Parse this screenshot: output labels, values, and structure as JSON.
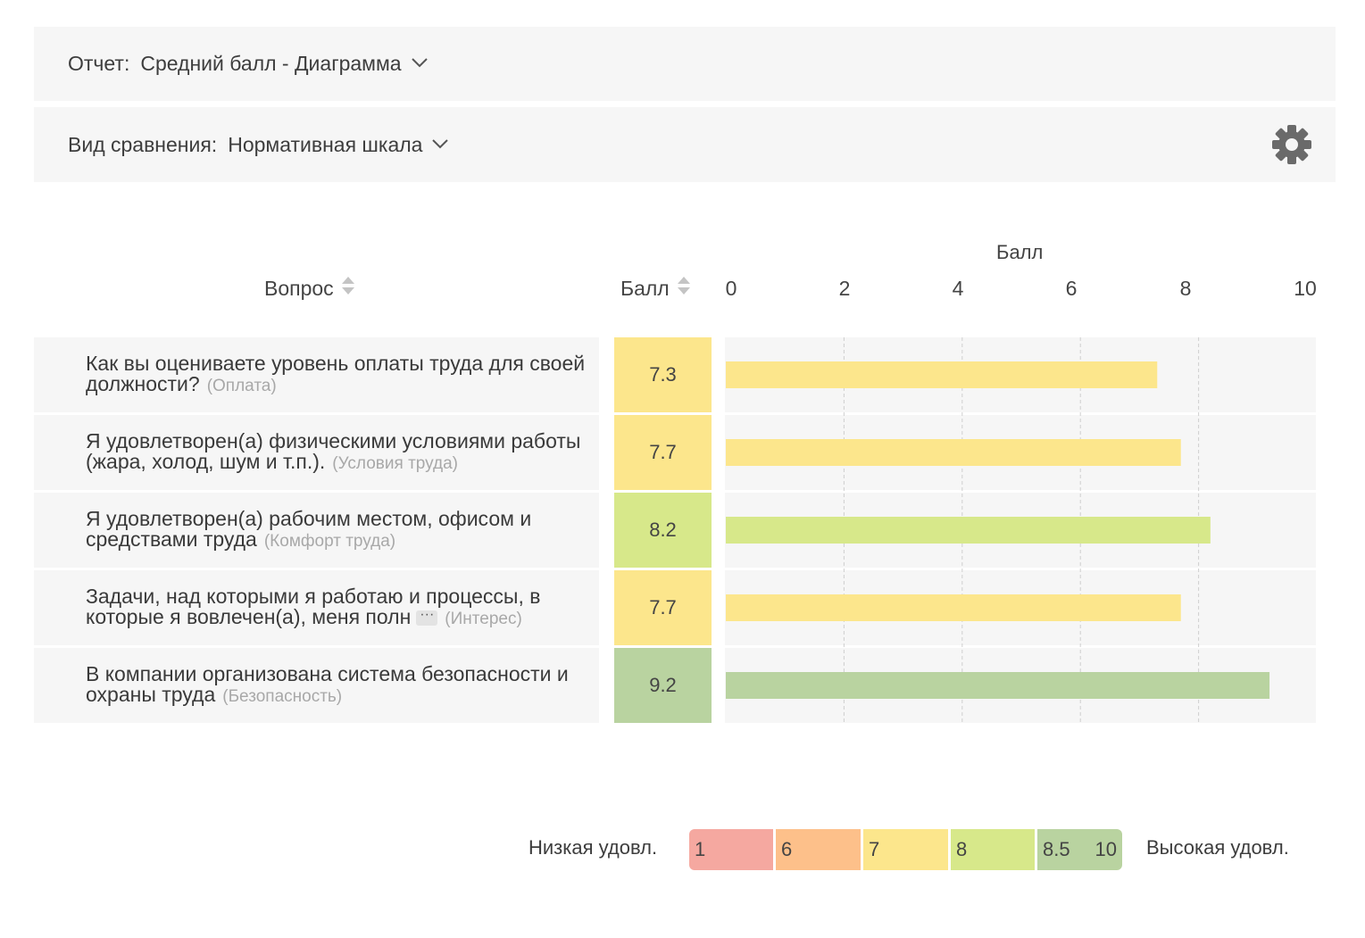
{
  "report": {
    "label": "Отчет:",
    "value": "Средний балл - Диаграмма"
  },
  "compare": {
    "label": "Вид сравнения:",
    "value": "Нормативная шкала"
  },
  "table": {
    "col_question": "Вопрос",
    "col_score": "Балл"
  },
  "chart_data": {
    "type": "bar",
    "orientation": "horizontal",
    "title": "",
    "xlabel": "Балл",
    "xlim": [
      0,
      10
    ],
    "ticks": [
      "0",
      "2",
      "4",
      "6",
      "8",
      "10"
    ],
    "grid": "vertical dashed",
    "categories": [
      "Как вы оцениваете уровень оплаты труда для своей должности?",
      "Я удовлетворен(а) физическими условиями работы (жара, холод, шум и т.п.).",
      "Я удовлетворен(а) рабочим местом, офисом и средствами труда",
      "Задачи, над которыми я работаю и процессы, в которые я вовлечен(а), меня полн",
      "В компании организована система безопасности и охраны труда"
    ],
    "values": [
      7.3,
      7.7,
      8.2,
      7.7,
      9.2
    ],
    "value_labels": [
      "7.3",
      "7.7",
      "8.2",
      "7.7",
      "9.2"
    ],
    "bar_colors": [
      "#fce68c",
      "#fce68c",
      "#d7e88a",
      "#fce68c",
      "#b9d3a0"
    ]
  },
  "rows": [
    {
      "text": "Как вы оцениваете уровень оплаты труда для своей должности?",
      "category": "(Оплата)",
      "truncated": false
    },
    {
      "text": "Я удовлетворен(а) физическими условиями работы (жара, холод, шум и т.п.).",
      "category": "(Условия труда)",
      "truncated": false
    },
    {
      "text": "Я удовлетворен(а) рабочим местом, офисом и средствами труда",
      "category": "(Комфорт труда)",
      "truncated": false
    },
    {
      "text": "Задачи, над которыми я работаю и процессы, в которые я вовлечен(а), меня полн",
      "category": "(Интерес)",
      "truncated": true
    },
    {
      "text": "В компании организована система безопасности и охраны труда",
      "category": "(Безопасность)",
      "truncated": false
    }
  ],
  "more_glyph": "···",
  "legend": {
    "low_label": "Низкая удовл.",
    "high_label": "Высокая удовл.",
    "segments": [
      {
        "label": "1",
        "color": "#f5a8a0"
      },
      {
        "label": "6",
        "color": "#fdc08a"
      },
      {
        "label": "7",
        "color": "#fce68c"
      },
      {
        "label": "8",
        "color": "#d7e88a"
      },
      {
        "label": "8.5",
        "label_end": "10",
        "color": "#b9d3a0"
      }
    ]
  },
  "colors": {
    "panel_bg": "#f6f6f6",
    "grid": "#cfcfcf",
    "icon": "#6a6a6a"
  }
}
